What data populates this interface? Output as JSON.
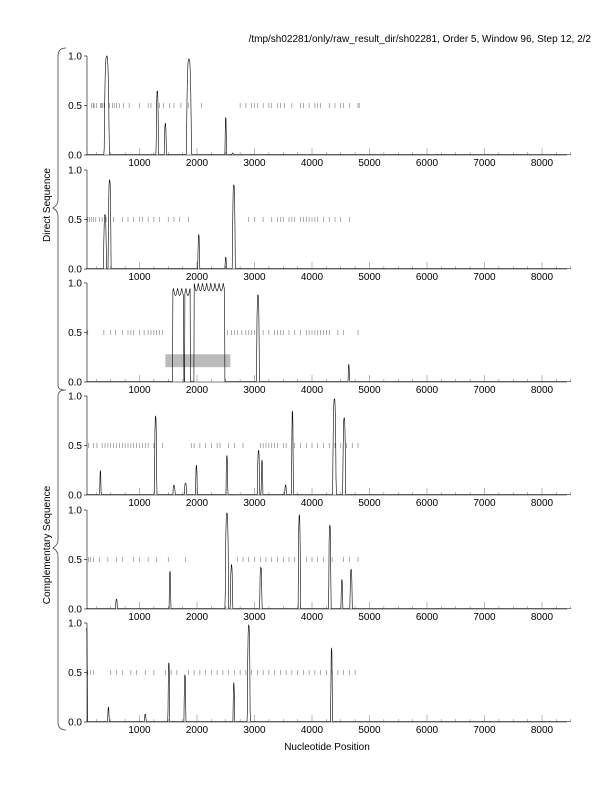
{
  "chart_data": {
    "type": "line",
    "title": "/tmp/sh02281/only/raw_result_dir/sh02281, Order 5, Window 96, Step 12, 2/2",
    "xlabel": "Nucleotide Position",
    "group_labels": [
      "Direct Sequence",
      "Complementary Sequence"
    ],
    "xlim": [
      80,
      8500
    ],
    "ylim": [
      0,
      1
    ],
    "xticks": [
      1000,
      2000,
      3000,
      4000,
      5000,
      6000,
      7000,
      8000
    ],
    "xtick_labels": [
      "1000",
      "2000",
      "3000",
      "4000",
      "5000",
      "6000",
      "7000",
      "8000"
    ],
    "yticks": [
      0,
      0.5,
      1
    ],
    "ytick_labels": [
      "0.0",
      "0.5",
      "1.0"
    ],
    "panels": [
      {
        "group": "Direct Sequence",
        "peaks": [
          [
            430,
            1.0,
            90
          ],
          [
            1310,
            0.65,
            40
          ],
          [
            1450,
            0.32,
            35
          ],
          [
            1860,
            0.97,
            90
          ],
          [
            2500,
            0.38,
            25
          ],
          [
            2620,
            0.02,
            30
          ]
        ],
        "marks_at_half": [
          170,
          195,
          210,
          250,
          320,
          340,
          360,
          385,
          480,
          530,
          560,
          600,
          650,
          720,
          820,
          1000,
          1150,
          1200,
          1300,
          1350,
          1420,
          1520,
          1600,
          1720,
          1850,
          2080,
          2750,
          2850,
          2950,
          3000,
          3050,
          3150,
          3250,
          3300,
          3400,
          3450,
          3520,
          3650,
          3800,
          3850,
          3950,
          4050,
          4100,
          4150,
          4300,
          4400,
          4500,
          4550,
          4650,
          4800,
          4820
        ]
      },
      {
        "group": "Direct Sequence",
        "peaks": [
          [
            400,
            0.55,
            50
          ],
          [
            480,
            0.9,
            50
          ],
          [
            2030,
            0.35,
            30
          ],
          [
            2500,
            0.12,
            25
          ],
          [
            2640,
            0.85,
            50
          ]
        ],
        "marks_at_half": [
          100,
          130,
          160,
          200,
          240,
          300,
          350,
          420,
          550,
          700,
          800,
          900,
          1000,
          1050,
          1150,
          1250,
          1350,
          1500,
          1600,
          1700,
          1850,
          2900,
          3000,
          3150,
          3300,
          3400,
          3450,
          3500,
          3600,
          3650,
          3700,
          3800,
          3850,
          3900,
          3950,
          4000,
          4050,
          4100,
          4200,
          4300,
          4400,
          4500,
          4650
        ]
      },
      {
        "group": "Direct Sequence",
        "plateaus": [
          [
            1580,
            1770,
            0.95
          ],
          [
            1790,
            1880,
            0.95
          ],
          [
            1950,
            2480,
            1.0
          ]
        ],
        "peaks": [
          [
            3060,
            0.88,
            50
          ],
          [
            4640,
            0.18,
            25
          ]
        ],
        "highlight_box": {
          "x": [
            1450,
            2580
          ],
          "y": [
            0.15,
            0.28
          ]
        },
        "marks_at_half": [
          100,
          380,
          500,
          580,
          700,
          800,
          850,
          900,
          1000,
          1080,
          1150,
          1200,
          1250,
          1300,
          1350,
          1400,
          2530,
          2600,
          2650,
          2700,
          2780,
          2850,
          2900,
          2950,
          3000,
          3150,
          3250,
          3350,
          3400,
          3450,
          3500,
          3600,
          3700,
          3800,
          3900,
          3950,
          4000,
          4050,
          4100,
          4150,
          4200,
          4250,
          4300,
          4450,
          4550,
          4800
        ]
      },
      {
        "group": "Complementary Sequence",
        "peaks": [
          [
            320,
            0.25,
            25
          ],
          [
            1280,
            0.8,
            40
          ],
          [
            1600,
            0.1,
            40
          ],
          [
            1800,
            0.12,
            40
          ],
          [
            1990,
            0.3,
            30
          ],
          [
            2520,
            0.4,
            30
          ],
          [
            3070,
            0.45,
            40
          ],
          [
            3130,
            0.35,
            30
          ],
          [
            3540,
            0.1,
            30
          ],
          [
            3660,
            0.85,
            30
          ],
          [
            4390,
            0.97,
            60
          ],
          [
            4560,
            0.78,
            50
          ]
        ],
        "marks_at_half": [
          110,
          200,
          260,
          350,
          400,
          450,
          500,
          550,
          600,
          650,
          700,
          750,
          800,
          850,
          900,
          950,
          1000,
          1050,
          1100,
          1150,
          1250,
          1400,
          1900,
          1950,
          2050,
          2150,
          2250,
          2350,
          2400,
          2550,
          2650,
          2800,
          3100,
          3150,
          3200,
          3250,
          3300,
          3350,
          3400,
          3500,
          3550,
          3700,
          3800,
          3900,
          4000,
          4100,
          4200,
          4300,
          4400,
          4500,
          4600,
          4700,
          4800
        ]
      },
      {
        "group": "Complementary Sequence",
        "peaks": [
          [
            600,
            0.1,
            30
          ],
          [
            1530,
            0.38,
            30
          ],
          [
            2520,
            0.97,
            60
          ],
          [
            2600,
            0.45,
            40
          ],
          [
            3110,
            0.42,
            40
          ],
          [
            3780,
            0.95,
            40
          ],
          [
            4310,
            0.85,
            40
          ],
          [
            4520,
            0.3,
            30
          ],
          [
            4680,
            0.4,
            40
          ]
        ],
        "marks_at_half": [
          110,
          150,
          200,
          300,
          450,
          600,
          700,
          900,
          1000,
          1150,
          1300,
          1500,
          1800,
          2700,
          2800,
          2900,
          3000,
          3100,
          3200,
          3300,
          3400,
          3500,
          3600,
          3700,
          3900,
          4000,
          4100,
          4200,
          4350,
          4550,
          4650,
          4800
        ]
      },
      {
        "group": "Complementary Sequence",
        "peaks": [
          [
            80,
            0.95,
            30
          ],
          [
            460,
            0.15,
            25
          ],
          [
            1100,
            0.08,
            30
          ],
          [
            1510,
            0.6,
            30
          ],
          [
            1790,
            0.48,
            30
          ],
          [
            2640,
            0.4,
            25
          ],
          [
            2900,
            0.98,
            50
          ],
          [
            4340,
            0.75,
            30
          ]
        ],
        "marks_at_half": [
          100,
          150,
          200,
          500,
          600,
          700,
          850,
          950,
          1100,
          1250,
          1450,
          1550,
          1650,
          1850,
          1950,
          2050,
          2150,
          2250,
          2350,
          2450,
          2550,
          2650,
          2750,
          2850,
          2950,
          3050,
          3150,
          3250,
          3350,
          3450,
          3550,
          3650,
          3750,
          3850,
          3950,
          4050,
          4150,
          4250,
          4350,
          4450,
          4550,
          4650,
          4750
        ]
      }
    ]
  }
}
